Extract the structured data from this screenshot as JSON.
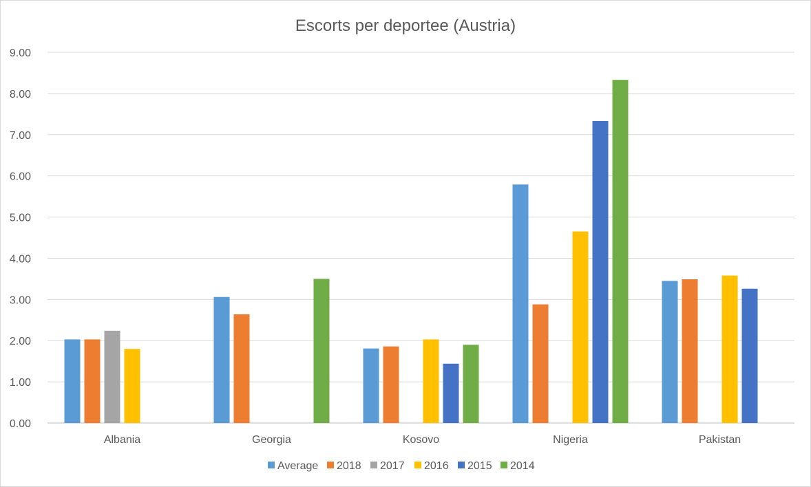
{
  "chart_data": {
    "type": "bar",
    "title": "Escorts per deportee (Austria)",
    "xlabel": "",
    "ylabel": "",
    "ylim": [
      0,
      9
    ],
    "ytick_step": 1,
    "ytick_labels": [
      "0.00",
      "1.00",
      "2.00",
      "3.00",
      "4.00",
      "5.00",
      "6.00",
      "7.00",
      "8.00",
      "9.00"
    ],
    "grid": true,
    "legend_position": "bottom",
    "categories": [
      "Albania",
      "Georgia",
      "Kosovo",
      "Nigeria",
      "Pakistan"
    ],
    "series": [
      {
        "name": "Average",
        "color": "#5b9bd5",
        "values": [
          2.03,
          3.06,
          1.81,
          5.79,
          3.45
        ]
      },
      {
        "name": "2018",
        "color": "#ed7d31",
        "values": [
          2.03,
          2.64,
          1.86,
          2.88,
          3.49
        ]
      },
      {
        "name": "2017",
        "color": "#a5a5a5",
        "values": [
          2.24,
          null,
          null,
          null,
          null
        ]
      },
      {
        "name": "2016",
        "color": "#ffc000",
        "values": [
          1.8,
          null,
          2.03,
          4.65,
          3.58
        ]
      },
      {
        "name": "2015",
        "color": "#4472c4",
        "values": [
          null,
          null,
          1.44,
          7.33,
          3.26
        ]
      },
      {
        "name": "2014",
        "color": "#70ad47",
        "values": [
          null,
          3.5,
          1.9,
          8.33,
          null
        ]
      }
    ]
  }
}
